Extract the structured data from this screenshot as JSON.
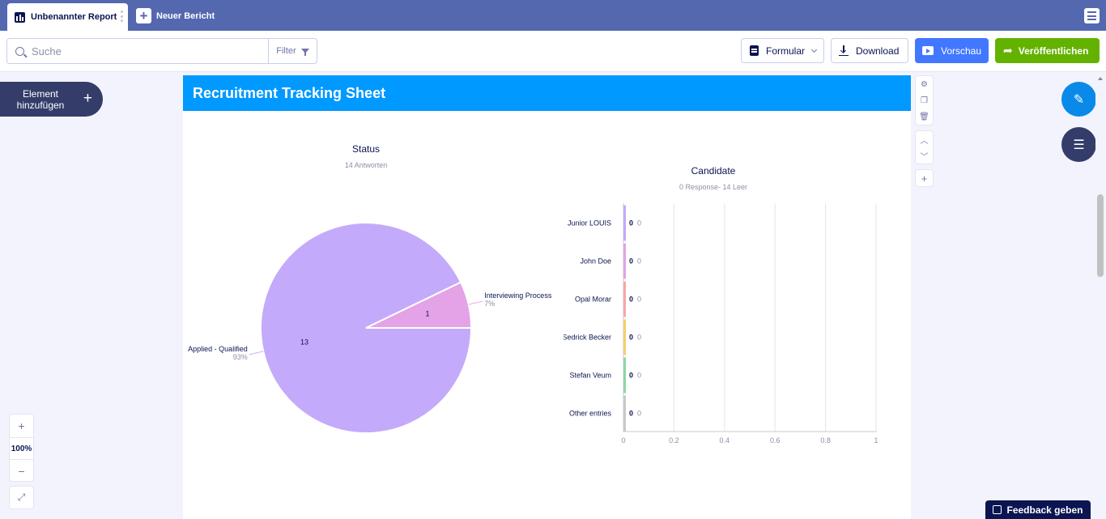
{
  "tabs": {
    "active_label": "Unbenannter Report",
    "new_label": "Neuer Bericht"
  },
  "toolbar": {
    "search_placeholder": "Suche",
    "filter_label": "Filter",
    "form_label": "Formular",
    "download_label": "Download",
    "preview_label": "Vorschau",
    "publish_label": "Veröffentlichen"
  },
  "left": {
    "add_element_line1": "Element",
    "add_element_line2": "hinzufügen",
    "zoom_level": "100%"
  },
  "page": {
    "title": "Recruitment Tracking Sheet"
  },
  "feedback_label": "Feedback geben",
  "colors": {
    "topbar": "#5468b0",
    "header_blue": "#0099ff",
    "preview_blue": "#4277ff",
    "publish_green": "#64b200",
    "dark_navy": "#0a1551"
  },
  "chart_data": [
    {
      "type": "pie",
      "title": "Status",
      "subtitle": "14 Antworten",
      "slices": [
        {
          "label": "Applied - Qualified",
          "value": 13,
          "percent": "93%",
          "color": "#c4aafa"
        },
        {
          "label": "Interviewing Process",
          "value": 1,
          "percent": "7%",
          "color": "#e3a3e6"
        }
      ]
    },
    {
      "type": "bar",
      "orientation": "horizontal",
      "title": "Candidate",
      "subtitle": "0 Response- 14 Leer",
      "categories": [
        "Junior LOUIS",
        "John Doe",
        "Opal Morar",
        "Sedrick Becker",
        "Stefan Veum",
        "Other entries"
      ],
      "values": [
        0,
        0,
        0,
        0,
        0,
        0
      ],
      "value_labels": [
        "0",
        "0",
        "0",
        "0",
        "0",
        "0"
      ],
      "secondary_labels": [
        "0",
        "0",
        "0",
        "0",
        "0",
        "0"
      ],
      "colors": [
        "#c4aafa",
        "#e3a3e6",
        "#f7a8a8",
        "#f5cf6b",
        "#8ed6a8",
        "#c8c8c8"
      ],
      "xlim": [
        0,
        1
      ],
      "xticks": [
        "0",
        "0.2",
        "0.4",
        "0.6",
        "0.8",
        "1"
      ]
    }
  ]
}
